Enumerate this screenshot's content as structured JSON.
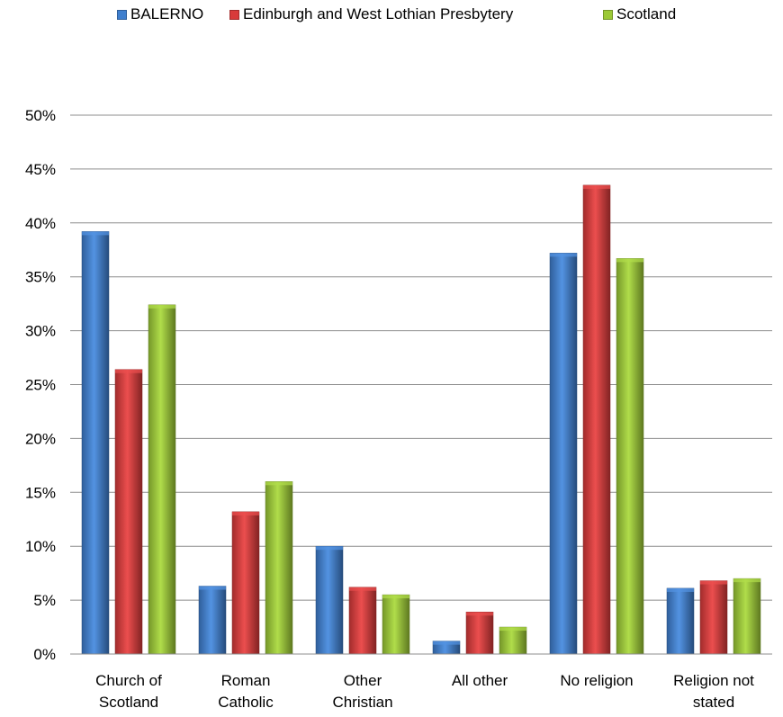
{
  "chart_data": {
    "type": "bar",
    "title": "",
    "xlabel": "",
    "ylabel": "",
    "categories": [
      [
        "Church of",
        "Scotland"
      ],
      [
        "Roman",
        "Catholic"
      ],
      [
        "Other",
        "Christian"
      ],
      [
        "All other"
      ],
      [
        "No religion"
      ],
      [
        "Religion not",
        "stated"
      ]
    ],
    "series": [
      {
        "name": "BALERNO",
        "color": "#3f7fce",
        "values": [
          39.2,
          6.3,
          10.0,
          1.2,
          37.2,
          6.1
        ]
      },
      {
        "name": "Edinburgh and West Lothian Presbytery",
        "color": "#d83a3a",
        "values": [
          26.4,
          13.2,
          6.2,
          3.9,
          43.5,
          6.8
        ]
      },
      {
        "name": "Scotland",
        "color": "#9cc936",
        "values": [
          32.4,
          16.0,
          5.5,
          2.5,
          36.7,
          7.0
        ]
      }
    ],
    "ylim": [
      0,
      50
    ],
    "yticks": [
      "0%",
      "5%",
      "10%",
      "15%",
      "20%",
      "25%",
      "30%",
      "35%",
      "40%",
      "45%",
      "50%"
    ],
    "grid": true,
    "legend_position": "top"
  }
}
